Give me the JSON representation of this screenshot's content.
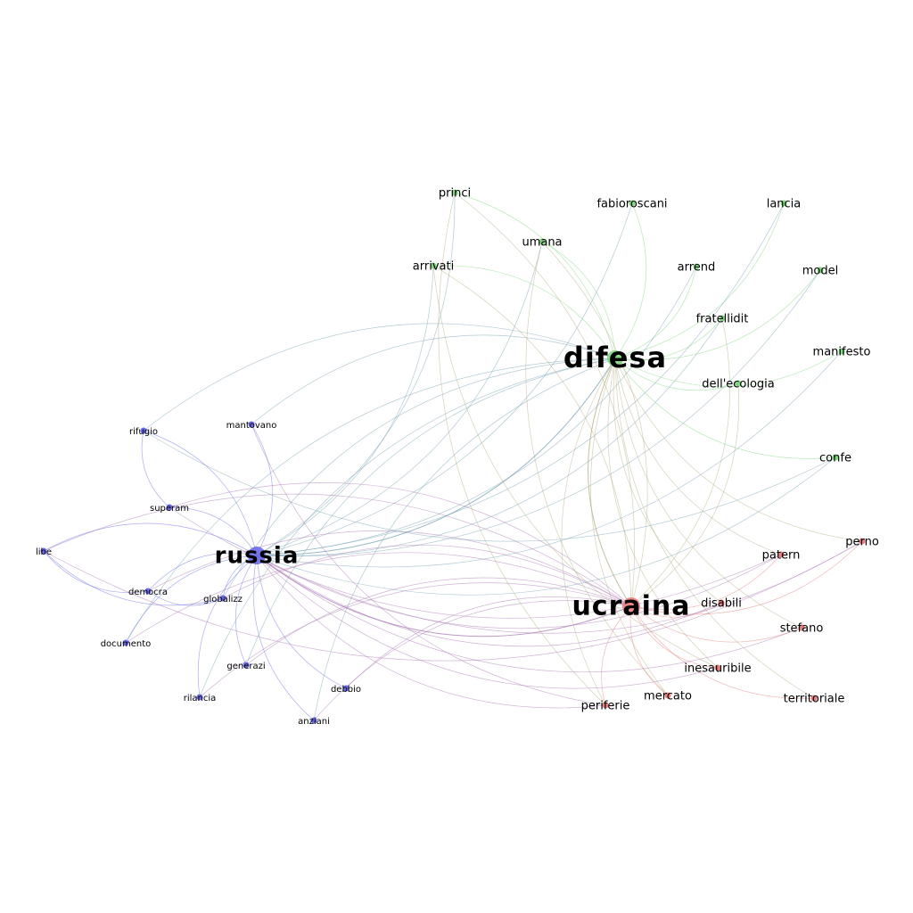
{
  "graph": {
    "type": "network",
    "communities": [
      {
        "id": "russia",
        "color": "#6a6ae8"
      },
      {
        "id": "difesa",
        "color": "#7ed67e"
      },
      {
        "id": "ucraina",
        "color": "#e88080"
      }
    ],
    "nodes": [
      {
        "id": "russia",
        "label": "russia",
        "community": "russia",
        "hub": true
      },
      {
        "id": "difesa",
        "label": "difesa",
        "community": "difesa",
        "hub": true
      },
      {
        "id": "ucraina",
        "label": "ucraina",
        "community": "ucraina",
        "hub": true
      },
      {
        "id": "mantovano",
        "label": "mantovano",
        "community": "russia"
      },
      {
        "id": "rifugio",
        "label": "rifugio",
        "community": "russia"
      },
      {
        "id": "superam",
        "label": "superam",
        "community": "russia"
      },
      {
        "id": "libe",
        "label": "libe",
        "community": "russia"
      },
      {
        "id": "democra",
        "label": "democra",
        "community": "russia"
      },
      {
        "id": "globalizz",
        "label": "globalizz",
        "community": "russia"
      },
      {
        "id": "documento",
        "label": "documento",
        "community": "russia"
      },
      {
        "id": "generazi",
        "label": "generazi",
        "community": "russia"
      },
      {
        "id": "rilancia",
        "label": "rilancia",
        "community": "russia"
      },
      {
        "id": "debbio",
        "label": "debbio",
        "community": "russia"
      },
      {
        "id": "anziani",
        "label": "anziani",
        "community": "russia"
      },
      {
        "id": "princi",
        "label": "princi",
        "community": "difesa"
      },
      {
        "id": "fabioroscani",
        "label": "fabioroscani",
        "community": "difesa"
      },
      {
        "id": "lancia",
        "label": "lancia",
        "community": "difesa"
      },
      {
        "id": "umana",
        "label": "umana",
        "community": "difesa"
      },
      {
        "id": "arrivati",
        "label": "arrivati",
        "community": "difesa"
      },
      {
        "id": "arrend",
        "label": "arrend",
        "community": "difesa"
      },
      {
        "id": "model",
        "label": "model",
        "community": "difesa"
      },
      {
        "id": "fratellidit",
        "label": "fratellidit",
        "community": "difesa"
      },
      {
        "id": "manifesto",
        "label": "manifesto",
        "community": "difesa"
      },
      {
        "id": "dellecologia",
        "label": "dell'ecologia",
        "community": "difesa"
      },
      {
        "id": "confe",
        "label": "confe",
        "community": "difesa"
      },
      {
        "id": "perno",
        "label": "perno",
        "community": "ucraina"
      },
      {
        "id": "patern",
        "label": "patern",
        "community": "ucraina"
      },
      {
        "id": "disabili",
        "label": "disabili",
        "community": "ucraina"
      },
      {
        "id": "stefano",
        "label": "stefano",
        "community": "ucraina"
      },
      {
        "id": "inesauribile",
        "label": "inesauribile",
        "community": "ucraina"
      },
      {
        "id": "mercato",
        "label": "mercato",
        "community": "ucraina"
      },
      {
        "id": "periferie",
        "label": "periferie",
        "community": "ucraina"
      },
      {
        "id": "territoriale",
        "label": "territoriale",
        "community": "ucraina"
      }
    ],
    "edges": [
      [
        "russia",
        "difesa"
      ],
      [
        "russia",
        "ucraina"
      ],
      [
        "difesa",
        "ucraina"
      ],
      [
        "russia",
        "mantovano"
      ],
      [
        "russia",
        "rifugio"
      ],
      [
        "russia",
        "superam"
      ],
      [
        "russia",
        "libe"
      ],
      [
        "russia",
        "democra"
      ],
      [
        "russia",
        "globalizz"
      ],
      [
        "russia",
        "documento"
      ],
      [
        "russia",
        "generazi"
      ],
      [
        "russia",
        "rilancia"
      ],
      [
        "russia",
        "debbio"
      ],
      [
        "russia",
        "anziani"
      ],
      [
        "rifugio",
        "superam"
      ],
      [
        "libe",
        "globalizz"
      ],
      [
        "libe",
        "democra"
      ],
      [
        "democra",
        "globalizz"
      ],
      [
        "difesa",
        "princi"
      ],
      [
        "difesa",
        "fabioroscani"
      ],
      [
        "difesa",
        "lancia"
      ],
      [
        "difesa",
        "umana"
      ],
      [
        "difesa",
        "arrivati"
      ],
      [
        "difesa",
        "arrend"
      ],
      [
        "difesa",
        "model"
      ],
      [
        "difesa",
        "fratellidit"
      ],
      [
        "difesa",
        "manifesto"
      ],
      [
        "difesa",
        "dellecologia"
      ],
      [
        "difesa",
        "confe"
      ],
      [
        "russia",
        "princi"
      ],
      [
        "russia",
        "fabioroscani"
      ],
      [
        "russia",
        "lancia"
      ],
      [
        "russia",
        "umana"
      ],
      [
        "russia",
        "arrivati"
      ],
      [
        "russia",
        "arrend"
      ],
      [
        "russia",
        "model"
      ],
      [
        "russia",
        "fratellidit"
      ],
      [
        "russia",
        "manifesto"
      ],
      [
        "russia",
        "confe"
      ],
      [
        "difesa",
        "mantovano"
      ],
      [
        "difesa",
        "globalizz"
      ],
      [
        "difesa",
        "documento"
      ],
      [
        "difesa",
        "generazi"
      ],
      [
        "difesa",
        "rilancia"
      ],
      [
        "difesa",
        "anziani"
      ],
      [
        "difesa",
        "rifugio"
      ],
      [
        "ucraina",
        "perno"
      ],
      [
        "ucraina",
        "patern"
      ],
      [
        "ucraina",
        "disabili"
      ],
      [
        "ucraina",
        "stefano"
      ],
      [
        "ucraina",
        "inesauribile"
      ],
      [
        "ucraina",
        "mercato"
      ],
      [
        "ucraina",
        "periferie"
      ],
      [
        "ucraina",
        "territoriale"
      ],
      [
        "difesa",
        "perno"
      ],
      [
        "difesa",
        "patern"
      ],
      [
        "difesa",
        "disabili"
      ],
      [
        "difesa",
        "stefano"
      ],
      [
        "difesa",
        "inesauribile"
      ],
      [
        "difesa",
        "mercato"
      ],
      [
        "difesa",
        "territoriale"
      ],
      [
        "difesa",
        "periferie"
      ],
      [
        "russia",
        "perno"
      ],
      [
        "russia",
        "patern"
      ],
      [
        "russia",
        "disabili"
      ],
      [
        "russia",
        "stefano"
      ],
      [
        "russia",
        "periferie"
      ],
      [
        "russia",
        "inesauribile"
      ],
      [
        "ucraina",
        "democra"
      ],
      [
        "ucraina",
        "globalizz"
      ],
      [
        "ucraina",
        "documento"
      ],
      [
        "ucraina",
        "generazi"
      ],
      [
        "ucraina",
        "rilancia"
      ],
      [
        "ucraina",
        "debbio"
      ],
      [
        "ucraina",
        "anziani"
      ],
      [
        "ucraina",
        "libe"
      ],
      [
        "ucraina",
        "superam"
      ],
      [
        "ucraina",
        "princi"
      ],
      [
        "ucraina",
        "umana"
      ],
      [
        "ucraina",
        "arrivati"
      ],
      [
        "ucraina",
        "fratellidit"
      ],
      [
        "ucraina",
        "dellecologia"
      ],
      [
        "princi",
        "periferie"
      ],
      [
        "rifugio",
        "confe"
      ],
      [
        "superam",
        "patern"
      ],
      [
        "libe",
        "perno"
      ],
      [
        "mantovano",
        "periferie"
      ],
      [
        "umana",
        "mercato"
      ],
      [
        "arrivati",
        "inesauribile"
      ]
    ]
  }
}
